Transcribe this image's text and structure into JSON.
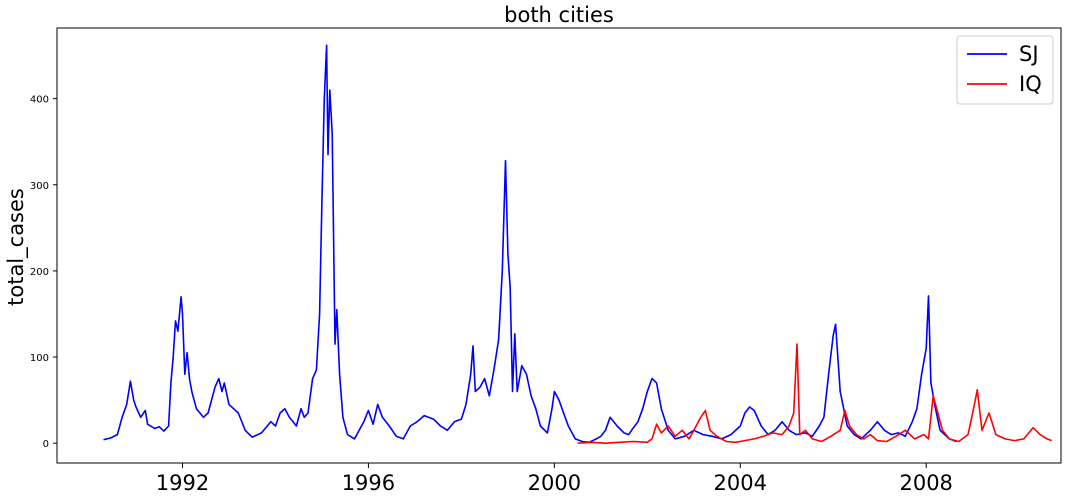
{
  "chart_data": {
    "type": "line",
    "title": "both cities",
    "xlabel": "",
    "ylabel": "total_cases",
    "xlim": [
      1989.3,
      2010.9
    ],
    "ylim": [
      -23,
      482
    ],
    "x_ticks": [
      1992,
      1996,
      2000,
      2004,
      2008
    ],
    "x_tick_labels": [
      "1992",
      "1996",
      "2000",
      "2004",
      "2008"
    ],
    "y_ticks": [
      0,
      100,
      200,
      300,
      400
    ],
    "y_tick_labels": [
      "0",
      "100",
      "200",
      "300",
      "400"
    ],
    "grid": false,
    "legend_position": "top-right",
    "series": [
      {
        "name": "SJ",
        "color": "#0000ff",
        "points": [
          [
            1990.3,
            4
          ],
          [
            1990.45,
            6
          ],
          [
            1990.6,
            10
          ],
          [
            1990.7,
            30
          ],
          [
            1990.8,
            45
          ],
          [
            1990.88,
            72
          ],
          [
            1990.95,
            50
          ],
          [
            1991.0,
            42
          ],
          [
            1991.1,
            30
          ],
          [
            1991.2,
            38
          ],
          [
            1991.25,
            22
          ],
          [
            1991.4,
            17
          ],
          [
            1991.5,
            19
          ],
          [
            1991.6,
            14
          ],
          [
            1991.7,
            20
          ],
          [
            1991.75,
            70
          ],
          [
            1991.8,
            100
          ],
          [
            1991.85,
            142
          ],
          [
            1991.9,
            130
          ],
          [
            1991.97,
            170
          ],
          [
            1992.0,
            150
          ],
          [
            1992.05,
            80
          ],
          [
            1992.1,
            105
          ],
          [
            1992.15,
            75
          ],
          [
            1992.2,
            60
          ],
          [
            1992.3,
            40
          ],
          [
            1992.45,
            30
          ],
          [
            1992.55,
            35
          ],
          [
            1992.7,
            65
          ],
          [
            1992.78,
            75
          ],
          [
            1992.85,
            60
          ],
          [
            1992.9,
            70
          ],
          [
            1993.0,
            45
          ],
          [
            1993.1,
            40
          ],
          [
            1993.2,
            35
          ],
          [
            1993.35,
            15
          ],
          [
            1993.5,
            7
          ],
          [
            1993.7,
            12
          ],
          [
            1993.9,
            25
          ],
          [
            1994.0,
            20
          ],
          [
            1994.1,
            35
          ],
          [
            1994.2,
            40
          ],
          [
            1994.3,
            30
          ],
          [
            1994.45,
            20
          ],
          [
            1994.55,
            40
          ],
          [
            1994.62,
            30
          ],
          [
            1994.7,
            35
          ],
          [
            1994.8,
            75
          ],
          [
            1994.88,
            85
          ],
          [
            1994.95,
            150
          ],
          [
            1995.0,
            280
          ],
          [
            1995.05,
            400
          ],
          [
            1995.1,
            462
          ],
          [
            1995.13,
            335
          ],
          [
            1995.17,
            410
          ],
          [
            1995.22,
            360
          ],
          [
            1995.28,
            115
          ],
          [
            1995.32,
            155
          ],
          [
            1995.38,
            80
          ],
          [
            1995.45,
            30
          ],
          [
            1995.55,
            10
          ],
          [
            1995.7,
            5
          ],
          [
            1995.9,
            25
          ],
          [
            1996.0,
            38
          ],
          [
            1996.1,
            22
          ],
          [
            1996.2,
            45
          ],
          [
            1996.3,
            30
          ],
          [
            1996.45,
            20
          ],
          [
            1996.6,
            8
          ],
          [
            1996.75,
            5
          ],
          [
            1996.9,
            20
          ],
          [
            1997.05,
            25
          ],
          [
            1997.2,
            32
          ],
          [
            1997.4,
            28
          ],
          [
            1997.55,
            20
          ],
          [
            1997.7,
            15
          ],
          [
            1997.85,
            25
          ],
          [
            1998.0,
            28
          ],
          [
            1998.1,
            45
          ],
          [
            1998.2,
            80
          ],
          [
            1998.25,
            113
          ],
          [
            1998.3,
            60
          ],
          [
            1998.4,
            65
          ],
          [
            1998.5,
            75
          ],
          [
            1998.6,
            55
          ],
          [
            1998.7,
            85
          ],
          [
            1998.8,
            120
          ],
          [
            1998.88,
            200
          ],
          [
            1998.95,
            328
          ],
          [
            1999.0,
            220
          ],
          [
            1999.05,
            180
          ],
          [
            1999.1,
            60
          ],
          [
            1999.15,
            127
          ],
          [
            1999.2,
            60
          ],
          [
            1999.3,
            90
          ],
          [
            1999.4,
            80
          ],
          [
            1999.5,
            55
          ],
          [
            1999.6,
            40
          ],
          [
            1999.7,
            20
          ],
          [
            1999.85,
            12
          ],
          [
            1999.95,
            40
          ],
          [
            2000.0,
            60
          ],
          [
            2000.1,
            50
          ],
          [
            2000.2,
            35
          ],
          [
            2000.3,
            20
          ],
          [
            2000.45,
            5
          ],
          [
            2000.6,
            2
          ],
          [
            2000.75,
            1
          ],
          [
            2000.9,
            5
          ],
          [
            2001.0,
            8
          ],
          [
            2001.1,
            15
          ],
          [
            2001.2,
            30
          ],
          [
            2001.35,
            20
          ],
          [
            2001.5,
            12
          ],
          [
            2001.6,
            10
          ],
          [
            2001.7,
            18
          ],
          [
            2001.8,
            25
          ],
          [
            2001.9,
            40
          ],
          [
            2002.0,
            60
          ],
          [
            2002.1,
            75
          ],
          [
            2002.2,
            70
          ],
          [
            2002.3,
            40
          ],
          [
            2002.45,
            15
          ],
          [
            2002.6,
            5
          ],
          [
            2002.8,
            8
          ],
          [
            2003.0,
            15
          ],
          [
            2003.2,
            10
          ],
          [
            2003.4,
            8
          ],
          [
            2003.6,
            5
          ],
          [
            2003.8,
            10
          ],
          [
            2004.0,
            20
          ],
          [
            2004.1,
            35
          ],
          [
            2004.2,
            42
          ],
          [
            2004.3,
            38
          ],
          [
            2004.45,
            20
          ],
          [
            2004.6,
            10
          ],
          [
            2004.75,
            15
          ],
          [
            2004.9,
            25
          ],
          [
            2005.05,
            15
          ],
          [
            2005.2,
            10
          ],
          [
            2005.4,
            12
          ],
          [
            2005.55,
            8
          ],
          [
            2005.7,
            20
          ],
          [
            2005.8,
            30
          ],
          [
            2005.9,
            80
          ],
          [
            2006.0,
            125
          ],
          [
            2006.05,
            138
          ],
          [
            2006.15,
            60
          ],
          [
            2006.3,
            20
          ],
          [
            2006.45,
            10
          ],
          [
            2006.6,
            5
          ],
          [
            2006.8,
            15
          ],
          [
            2006.95,
            25
          ],
          [
            2007.1,
            15
          ],
          [
            2007.25,
            10
          ],
          [
            2007.4,
            12
          ],
          [
            2007.55,
            8
          ],
          [
            2007.7,
            25
          ],
          [
            2007.8,
            40
          ],
          [
            2007.9,
            80
          ],
          [
            2008.0,
            110
          ],
          [
            2008.05,
            171
          ],
          [
            2008.1,
            70
          ],
          [
            2008.2,
            40
          ],
          [
            2008.3,
            15
          ],
          [
            2008.5,
            5
          ],
          [
            2008.65,
            2
          ]
        ]
      },
      {
        "name": "IQ",
        "color": "#ff0000",
        "points": [
          [
            2000.5,
            0
          ],
          [
            2000.8,
            1
          ],
          [
            2001.1,
            0
          ],
          [
            2001.4,
            1
          ],
          [
            2001.7,
            2
          ],
          [
            2002.0,
            1
          ],
          [
            2002.1,
            5
          ],
          [
            2002.2,
            22
          ],
          [
            2002.3,
            12
          ],
          [
            2002.45,
            20
          ],
          [
            2002.6,
            8
          ],
          [
            2002.75,
            15
          ],
          [
            2002.9,
            5
          ],
          [
            2003.05,
            20
          ],
          [
            2003.15,
            30
          ],
          [
            2003.25,
            38
          ],
          [
            2003.35,
            15
          ],
          [
            2003.5,
            8
          ],
          [
            2003.7,
            2
          ],
          [
            2003.9,
            1
          ],
          [
            2004.1,
            3
          ],
          [
            2004.3,
            5
          ],
          [
            2004.5,
            8
          ],
          [
            2004.7,
            12
          ],
          [
            2004.9,
            10
          ],
          [
            2005.05,
            20
          ],
          [
            2005.15,
            35
          ],
          [
            2005.22,
            115
          ],
          [
            2005.28,
            10
          ],
          [
            2005.4,
            15
          ],
          [
            2005.55,
            5
          ],
          [
            2005.75,
            2
          ],
          [
            2005.95,
            8
          ],
          [
            2006.15,
            15
          ],
          [
            2006.25,
            38
          ],
          [
            2006.35,
            20
          ],
          [
            2006.5,
            10
          ],
          [
            2006.65,
            5
          ],
          [
            2006.8,
            10
          ],
          [
            2006.95,
            3
          ],
          [
            2007.15,
            2
          ],
          [
            2007.35,
            8
          ],
          [
            2007.55,
            15
          ],
          [
            2007.75,
            5
          ],
          [
            2007.95,
            10
          ],
          [
            2008.05,
            5
          ],
          [
            2008.15,
            55
          ],
          [
            2008.25,
            35
          ],
          [
            2008.35,
            15
          ],
          [
            2008.5,
            5
          ],
          [
            2008.7,
            2
          ],
          [
            2008.9,
            10
          ],
          [
            2009.0,
            35
          ],
          [
            2009.1,
            62
          ],
          [
            2009.2,
            15
          ],
          [
            2009.35,
            35
          ],
          [
            2009.5,
            10
          ],
          [
            2009.7,
            5
          ],
          [
            2009.9,
            3
          ],
          [
            2010.1,
            5
          ],
          [
            2010.3,
            18
          ],
          [
            2010.45,
            10
          ],
          [
            2010.6,
            5
          ],
          [
            2010.7,
            3
          ]
        ]
      }
    ]
  }
}
